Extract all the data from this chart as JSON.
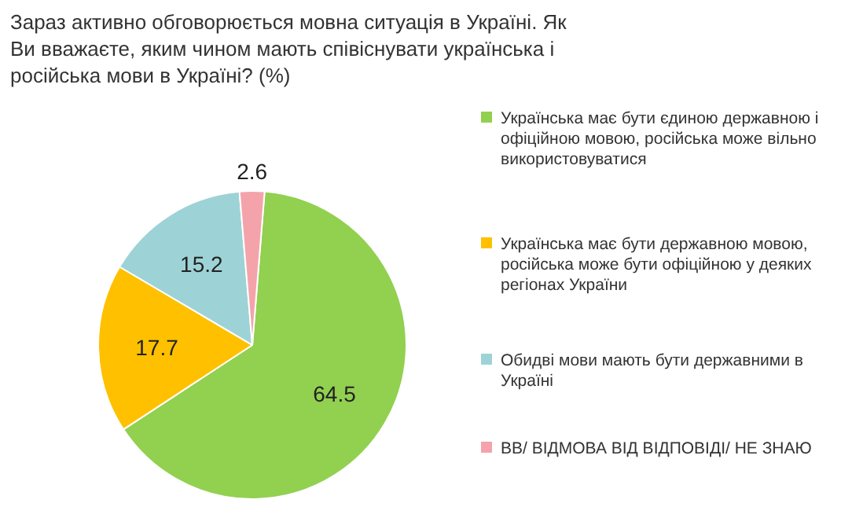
{
  "chart_data": {
    "type": "pie",
    "title": "Зараз активно обговорюється мовна ситуація в Україні. Як Ви вважаєте, яким чином мають співіснувати українська і російська мови в Україні? (%)",
    "categories": [
      "Українська має бути єдиною державною і офіційною мовою, російська може вільно використовуватися",
      "Українська має бути державною мовою, російська може бути офіційною у деяких регіонах України",
      "Обидві мови мають бути державними в Україні",
      "ВВ/ ВІДМОВА ВІД ВІДПОВІДІ/ НЕ ЗНАЮ"
    ],
    "values": [
      64.5,
      17.7,
      15.2,
      2.6
    ],
    "colors": [
      "#92d050",
      "#ffc000",
      "#9dd3d6",
      "#f4a3aa"
    ],
    "data_labels": true,
    "legend": "right"
  }
}
